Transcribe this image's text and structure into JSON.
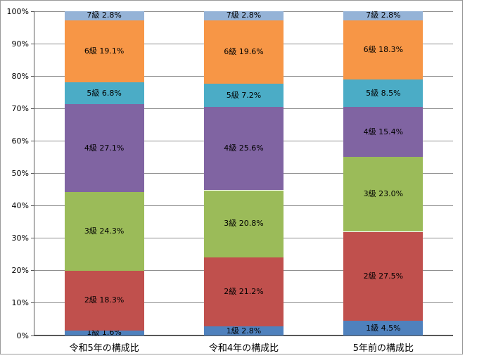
{
  "chart_data": {
    "type": "bar",
    "subtype": "stacked-100-percent",
    "title": "",
    "categories": [
      "令和5年の構成比",
      "令和4年の構成比",
      "5年前の構成比"
    ],
    "series": [
      {
        "name": "1級",
        "color": "#4F81BD",
        "values": [
          1.6,
          2.8,
          4.5
        ]
      },
      {
        "name": "2級",
        "color": "#C0504D",
        "values": [
          18.3,
          21.2,
          27.5
        ]
      },
      {
        "name": "3級",
        "color": "#9BBB59",
        "values": [
          24.3,
          20.8,
          23.0
        ]
      },
      {
        "name": "4級",
        "color": "#8064A2",
        "values": [
          27.1,
          25.6,
          15.4
        ]
      },
      {
        "name": "5級",
        "color": "#4BACC6",
        "values": [
          6.8,
          7.2,
          8.5
        ]
      },
      {
        "name": "6級",
        "color": "#F79646",
        "values": [
          19.1,
          19.6,
          18.3
        ]
      },
      {
        "name": "7級",
        "color": "#95B3D7",
        "values": [
          2.8,
          2.8,
          2.8
        ]
      }
    ],
    "data_label_format": "{series} {value}%",
    "xlabel": "",
    "ylabel": "",
    "y_axis": {
      "min": 0,
      "max": 100,
      "tick_labels": [
        "0%",
        "10%",
        "20%",
        "30%",
        "40%",
        "50%",
        "60%",
        "70%",
        "80%",
        "90%",
        "100%"
      ]
    },
    "grid": true,
    "legend_position": "none",
    "colors": {
      "gridline": "#8E8E8E",
      "axis_line": "#595959",
      "frame_border": "#9A9A9A",
      "background": "#FFFFFF",
      "label_text": "#000000"
    }
  }
}
